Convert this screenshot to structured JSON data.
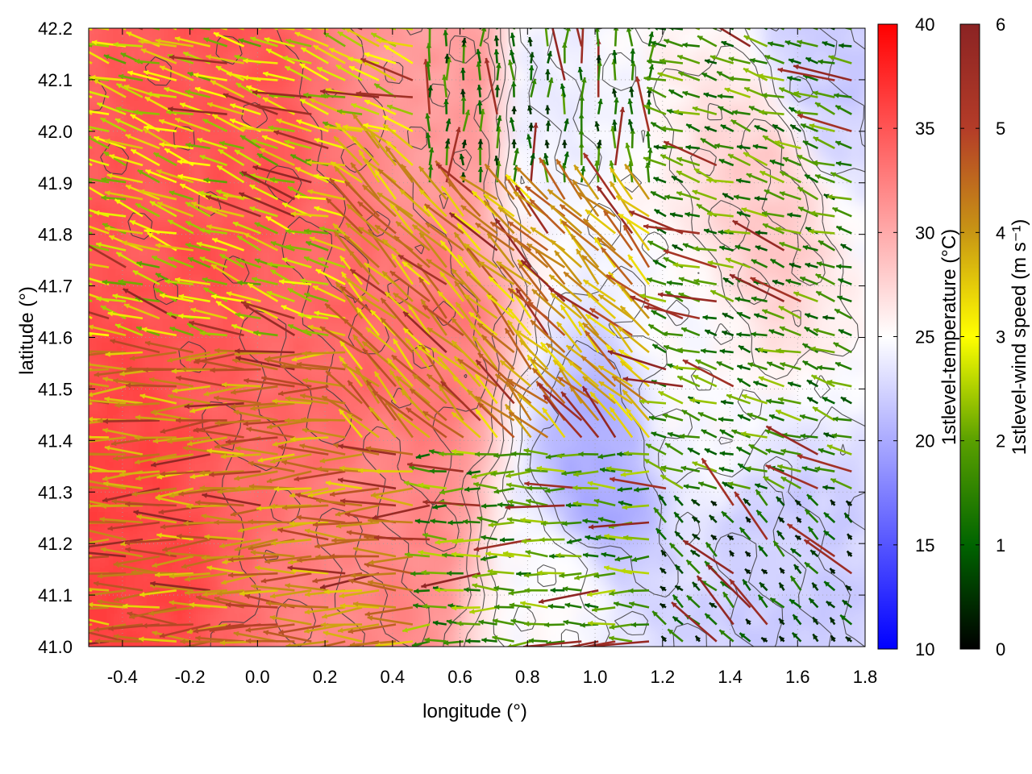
{
  "chart_data": {
    "type": "heatmap",
    "overlays": [
      "vector",
      "contour"
    ],
    "xlabel": "longitude (°)",
    "ylabel": "latitude (°)",
    "xlim": [
      -0.5,
      1.8
    ],
    "ylim": [
      41.0,
      42.2
    ],
    "x_ticks": [
      "-0.4",
      "-0.2",
      "0.0",
      "0.2",
      "0.4",
      "0.6",
      "0.8",
      "1.0",
      "1.2",
      "1.4",
      "1.6",
      "1.8"
    ],
    "y_ticks": [
      "41.0",
      "41.1",
      "41.2",
      "41.3",
      "41.4",
      "41.5",
      "41.6",
      "41.7",
      "41.8",
      "41.9",
      "42.0",
      "42.1",
      "42.2"
    ],
    "grid": true,
    "temperature_colorbar": {
      "label": "1stlevel-temperature (°C)",
      "range": [
        10,
        40
      ],
      "ticks": [
        "10",
        "15",
        "20",
        "25",
        "30",
        "35",
        "40"
      ],
      "colors": [
        "#0000ff",
        "#ffffff",
        "#ff0000"
      ]
    },
    "wind_colorbar": {
      "label": "1stlevel-wind speed (m s⁻¹)",
      "range": [
        0,
        6
      ],
      "ticks": [
        "0",
        "1",
        "2",
        "3",
        "4",
        "5",
        "6"
      ],
      "colors": [
        "#000000",
        "#006400",
        "#5aa000",
        "#ffff00",
        "#c89614",
        "#b43c28",
        "#8b2323"
      ]
    },
    "temperature_field": [
      {
        "lon": -0.45,
        "lat": 41.2,
        "temp": 36
      },
      {
        "lon": -0.1,
        "lat": 41.9,
        "temp": 35
      },
      {
        "lon": 0.2,
        "lat": 41.6,
        "temp": 34
      },
      {
        "lon": 0.5,
        "lat": 41.6,
        "temp": 33
      },
      {
        "lon": 0.4,
        "lat": 41.2,
        "temp": 32
      },
      {
        "lon": 0.6,
        "lat": 42.05,
        "temp": 31
      },
      {
        "lon": 0.85,
        "lat": 42.05,
        "temp": 24
      },
      {
        "lon": 1.3,
        "lat": 41.55,
        "temp": 25
      },
      {
        "lon": 1.0,
        "lat": 41.32,
        "temp": 20
      },
      {
        "lon": 1.55,
        "lat": 41.1,
        "temp": 22
      },
      {
        "lon": 1.7,
        "lat": 42.15,
        "temp": 22
      },
      {
        "lon": 1.5,
        "lat": 41.85,
        "temp": 28
      },
      {
        "lon": 0.9,
        "lat": 41.1,
        "temp": 25
      }
    ],
    "wind_regions": [
      {
        "lon_range": [
          -0.5,
          0.5
        ],
        "lat_range": [
          41.0,
          41.6
        ],
        "direction": "westward",
        "speed": 4.2
      },
      {
        "lon_range": [
          -0.5,
          0.5
        ],
        "lat_range": [
          41.6,
          42.2
        ],
        "direction": "west-northwestward",
        "speed": 2.8
      },
      {
        "lon_range": [
          0.3,
          1.2
        ],
        "lat_range": [
          41.4,
          42.0
        ],
        "direction": "northwestward",
        "speed": 4.0
      },
      {
        "lon_range": [
          0.5,
          1.2
        ],
        "lat_range": [
          41.0,
          41.4
        ],
        "direction": "westward",
        "speed": 1.8
      },
      {
        "lon_range": [
          1.2,
          1.8
        ],
        "lat_range": [
          41.0,
          41.3
        ],
        "direction": "northwestward",
        "speed": 0.8
      },
      {
        "lon_range": [
          1.2,
          1.8
        ],
        "lat_range": [
          41.3,
          42.2
        ],
        "direction": "west-northwestward",
        "speed": 1.6
      },
      {
        "lon_range": [
          0.5,
          1.2
        ],
        "lat_range": [
          41.9,
          42.2
        ],
        "direction": "northward",
        "speed": 1.2
      }
    ]
  }
}
